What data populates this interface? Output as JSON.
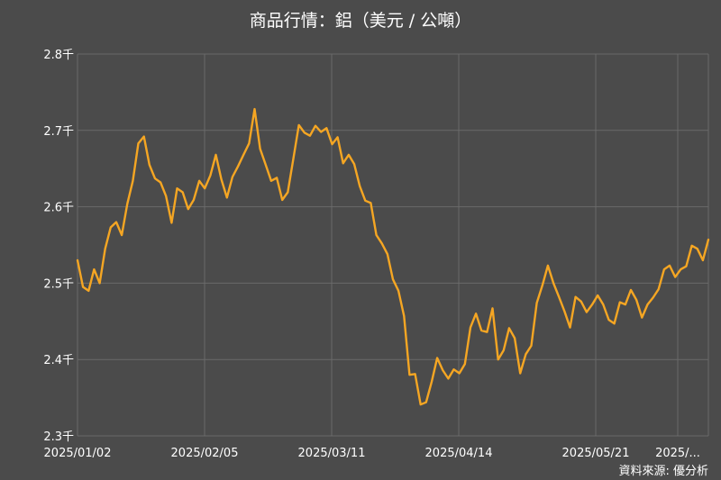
{
  "chart_data": {
    "type": "line",
    "title": "商品行情：鋁（美元 / 公噸）",
    "xlabel": "",
    "ylabel": "",
    "ylim": [
      2.3,
      2.8
    ],
    "y_ticks": [
      "2.3千",
      "2.4千",
      "2.5千",
      "2.6千",
      "2.7千",
      "2.8千"
    ],
    "x_ticks": [
      "2025/01/02",
      "2025/02/05",
      "2025/03/11",
      "2025/04/14",
      "2025/05/21",
      "2025/..."
    ],
    "grid": true,
    "legend": "none",
    "colors": {
      "line": "#f5a623",
      "background": "#4b4b4b",
      "grid": "#6a6a6a",
      "text": "#ffffff"
    },
    "series": [
      {
        "x": [
          "2025/01/02",
          "2025/01/03",
          "2025/01/06",
          "2025/01/07",
          "2025/01/08",
          "2025/01/09",
          "2025/01/10",
          "2025/01/13",
          "2025/01/14",
          "2025/01/15",
          "2025/01/16",
          "2025/01/17",
          "2025/01/20",
          "2025/01/21",
          "2025/01/22",
          "2025/01/23",
          "2025/01/24",
          "2025/01/27",
          "2025/01/28",
          "2025/01/29",
          "2025/01/30",
          "2025/01/31",
          "2025/02/03",
          "2025/02/04",
          "2025/02/05",
          "2025/02/06",
          "2025/02/07",
          "2025/02/10",
          "2025/02/11",
          "2025/02/12",
          "2025/02/13",
          "2025/02/14",
          "2025/02/17",
          "2025/02/18",
          "2025/02/19",
          "2025/02/20",
          "2025/02/21",
          "2025/02/24",
          "2025/02/25",
          "2025/02/26",
          "2025/02/27",
          "2025/02/28",
          "2025/03/03",
          "2025/03/04",
          "2025/03/05",
          "2025/03/06",
          "2025/03/07",
          "2025/03/10",
          "2025/03/11",
          "2025/03/12",
          "2025/03/13",
          "2025/03/14",
          "2025/03/17",
          "2025/03/18",
          "2025/03/19",
          "2025/03/20",
          "2025/03/21",
          "2025/03/24",
          "2025/03/25",
          "2025/03/26",
          "2025/03/27",
          "2025/03/28",
          "2025/03/31",
          "2025/04/01",
          "2025/04/02",
          "2025/04/03",
          "2025/04/04",
          "2025/04/07",
          "2025/04/08",
          "2025/04/09",
          "2025/04/10",
          "2025/04/11",
          "2025/04/14",
          "2025/04/15",
          "2025/04/16",
          "2025/04/17",
          "2025/04/22",
          "2025/04/23",
          "2025/04/24",
          "2025/04/25",
          "2025/04/28",
          "2025/04/29",
          "2025/04/30",
          "2025/05/01",
          "2025/05/02",
          "2025/05/06",
          "2025/05/07",
          "2025/05/08",
          "2025/05/09",
          "2025/05/12",
          "2025/05/13",
          "2025/05/14",
          "2025/05/15",
          "2025/05/16",
          "2025/05/19",
          "2025/05/20",
          "2025/05/21",
          "2025/05/22",
          "2025/05/23",
          "2025/05/27",
          "2025/05/28",
          "2025/05/29",
          "2025/05/30",
          "2025/06/02",
          "2025/06/03",
          "2025/06/04",
          "2025/06/05",
          "2025/06/06",
          "2025/06/09",
          "2025/06/10",
          "2025/06/11",
          "2025/06/12",
          "2025/06/13",
          "2025/06/16",
          "2025/06/17"
        ],
        "values": [
          2.53,
          2.495,
          2.49,
          2.518,
          2.5,
          2.545,
          2.573,
          2.58,
          2.563,
          2.604,
          2.634,
          2.683,
          2.692,
          2.655,
          2.637,
          2.632,
          2.614,
          2.579,
          2.624,
          2.619,
          2.597,
          2.609,
          2.634,
          2.624,
          2.641,
          2.668,
          2.636,
          2.612,
          2.639,
          2.653,
          2.668,
          2.683,
          2.728,
          2.676,
          2.655,
          2.634,
          2.638,
          2.609,
          2.619,
          2.663,
          2.707,
          2.697,
          2.693,
          2.706,
          2.698,
          2.703,
          2.682,
          2.691,
          2.657,
          2.668,
          2.656,
          2.627,
          2.608,
          2.605,
          2.563,
          2.552,
          2.538,
          2.505,
          2.49,
          2.457,
          2.38,
          2.381,
          2.341,
          2.344,
          2.371,
          2.402,
          2.386,
          2.375,
          2.387,
          2.382,
          2.394,
          2.442,
          2.46,
          2.438,
          2.436,
          2.467,
          2.4,
          2.412,
          2.441,
          2.428,
          2.382,
          2.407,
          2.418,
          2.474,
          2.497,
          2.523,
          2.5,
          2.482,
          2.463,
          2.442,
          2.482,
          2.476,
          2.462,
          2.472,
          2.484,
          2.472,
          2.452,
          2.447,
          2.475,
          2.472,
          2.491,
          2.478,
          2.455,
          2.472,
          2.481,
          2.492,
          2.518,
          2.523,
          2.508,
          2.518,
          2.522,
          2.549,
          2.545,
          2.53,
          2.557
        ]
      }
    ],
    "source": "資料來源: 優分析"
  }
}
